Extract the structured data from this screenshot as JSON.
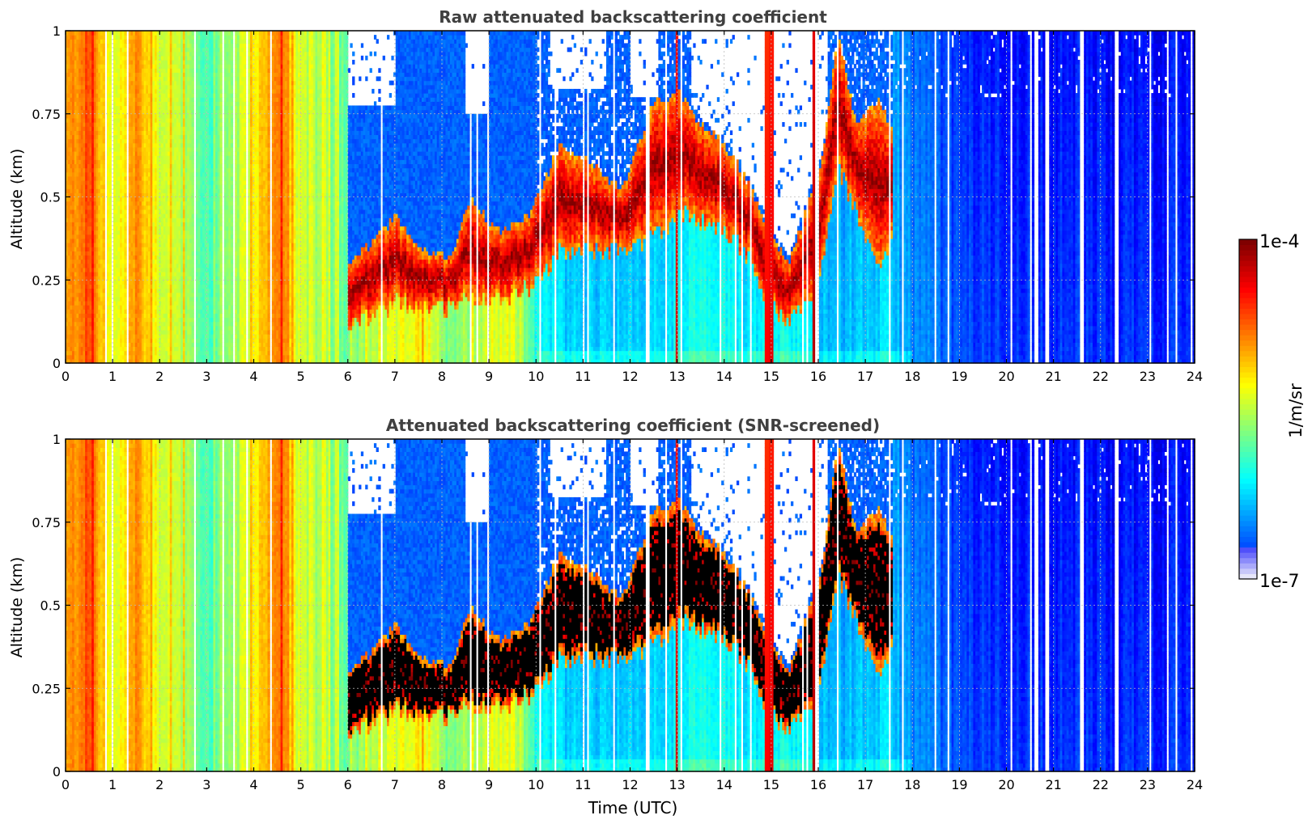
{
  "chart_data": [
    {
      "type": "heatmap",
      "title": "Raw attenuated backscattering coefficient",
      "xlabel": "",
      "ylabel": "Altitude (km)",
      "xlim": [
        0,
        24
      ],
      "ylim": [
        0,
        1
      ],
      "xticks": [
        "0",
        "1",
        "2",
        "3",
        "4",
        "5",
        "6",
        "7",
        "8",
        "9",
        "10",
        "11",
        "12",
        "13",
        "14",
        "15",
        "16",
        "17",
        "18",
        "19",
        "20",
        "21",
        "22",
        "23",
        "24"
      ],
      "yticks": [
        "0",
        "0.25",
        "0.5",
        "0.75",
        "1"
      ],
      "grid": true,
      "masking": "none"
    },
    {
      "type": "heatmap",
      "title": "Attenuated backscattering coefficient (SNR-screened)",
      "xlabel": "Time (UTC)",
      "ylabel": "Altitude (km)",
      "xlim": [
        0,
        24
      ],
      "ylim": [
        0,
        1
      ],
      "xticks": [
        "0",
        "1",
        "2",
        "3",
        "4",
        "5",
        "6",
        "7",
        "8",
        "9",
        "10",
        "11",
        "12",
        "13",
        "14",
        "15",
        "16",
        "17",
        "18",
        "19",
        "20",
        "21",
        "22",
        "23",
        "24"
      ],
      "yticks": [
        "0",
        "0.25",
        "0.5",
        "0.75",
        "1"
      ],
      "grid": true,
      "masking": "low-SNR cloud cores shown in black"
    }
  ],
  "colorbar": {
    "label": "1/m/sr",
    "min_label": "1e-7",
    "max_label": "1e-4",
    "scale": "log",
    "colormap": "jet",
    "low_color": "#e6e6fa",
    "high_color": "#800000"
  },
  "background_profile": [
    {
      "t": 0.0,
      "v": 0.7
    },
    {
      "t": 0.5,
      "v": 0.8
    },
    {
      "t": 1.0,
      "v": 0.58
    },
    {
      "t": 1.5,
      "v": 0.74
    },
    {
      "t": 2.0,
      "v": 0.6
    },
    {
      "t": 2.5,
      "v": 0.56
    },
    {
      "t": 3.0,
      "v": 0.44
    },
    {
      "t": 3.5,
      "v": 0.5
    },
    {
      "t": 4.0,
      "v": 0.63
    },
    {
      "t": 4.5,
      "v": 0.78
    },
    {
      "t": 5.0,
      "v": 0.56
    },
    {
      "t": 5.5,
      "v": 0.52
    },
    {
      "t": 6.0,
      "v": 0.48
    },
    {
      "t": 6.5,
      "v": 0.55
    },
    {
      "t": 7.0,
      "v": 0.58
    },
    {
      "t": 7.5,
      "v": 0.64
    },
    {
      "t": 8.0,
      "v": 0.5
    },
    {
      "t": 8.5,
      "v": 0.53
    },
    {
      "t": 9.0,
      "v": 0.58
    },
    {
      "t": 9.5,
      "v": 0.6
    },
    {
      "t": 10.0,
      "v": 0.4
    },
    {
      "t": 10.5,
      "v": 0.34
    },
    {
      "t": 11.0,
      "v": 0.33
    },
    {
      "t": 11.5,
      "v": 0.34
    },
    {
      "t": 12.0,
      "v": 0.32
    },
    {
      "t": 12.5,
      "v": 0.34
    },
    {
      "t": 13.0,
      "v": 0.37
    },
    {
      "t": 13.5,
      "v": 0.4
    },
    {
      "t": 14.0,
      "v": 0.38
    },
    {
      "t": 14.5,
      "v": 0.36
    },
    {
      "t": 15.0,
      "v": 0.4
    },
    {
      "t": 15.5,
      "v": 0.38
    },
    {
      "t": 16.0,
      "v": 0.34
    },
    {
      "t": 16.5,
      "v": 0.31
    },
    {
      "t": 17.0,
      "v": 0.33
    },
    {
      "t": 17.5,
      "v": 0.34
    },
    {
      "t": 18.0,
      "v": 0.27
    },
    {
      "t": 18.5,
      "v": 0.24
    },
    {
      "t": 19.0,
      "v": 0.2
    },
    {
      "t": 20.0,
      "v": 0.18
    },
    {
      "t": 21.0,
      "v": 0.18
    },
    {
      "t": 22.0,
      "v": 0.17
    },
    {
      "t": 23.0,
      "v": 0.17
    },
    {
      "t": 24.0,
      "v": 0.17
    }
  ],
  "cloud_layer": [
    {
      "t": 6.0,
      "base": 0.1,
      "top": 0.3
    },
    {
      "t": 6.5,
      "base": 0.14,
      "top": 0.36
    },
    {
      "t": 7.0,
      "base": 0.18,
      "top": 0.44
    },
    {
      "t": 7.6,
      "base": 0.17,
      "top": 0.34
    },
    {
      "t": 8.2,
      "base": 0.17,
      "top": 0.32
    },
    {
      "t": 8.6,
      "base": 0.2,
      "top": 0.5
    },
    {
      "t": 9.2,
      "base": 0.2,
      "top": 0.4
    },
    {
      "t": 9.8,
      "base": 0.22,
      "top": 0.44
    },
    {
      "t": 10.5,
      "base": 0.33,
      "top": 0.65
    },
    {
      "t": 11.2,
      "base": 0.34,
      "top": 0.6
    },
    {
      "t": 11.8,
      "base": 0.34,
      "top": 0.52
    },
    {
      "t": 12.5,
      "base": 0.38,
      "top": 0.78
    },
    {
      "t": 13.0,
      "base": 0.45,
      "top": 0.82
    },
    {
      "t": 13.5,
      "base": 0.43,
      "top": 0.72
    },
    {
      "t": 14.0,
      "base": 0.4,
      "top": 0.66
    },
    {
      "t": 14.5,
      "base": 0.32,
      "top": 0.55
    },
    {
      "t": 15.0,
      "base": 0.16,
      "top": 0.38
    },
    {
      "t": 15.4,
      "base": 0.12,
      "top": 0.3
    },
    {
      "t": 15.8,
      "base": 0.2,
      "top": 0.5
    },
    {
      "t": 16.1,
      "base": 0.3,
      "top": 0.62
    },
    {
      "t": 16.4,
      "base": 0.6,
      "top": 1.0
    },
    {
      "t": 16.8,
      "base": 0.45,
      "top": 0.72
    },
    {
      "t": 17.3,
      "base": 0.3,
      "top": 0.8
    },
    {
      "t": 17.6,
      "base": 0.4,
      "top": 0.7
    }
  ],
  "clear_gaps": [
    {
      "t0": 6.0,
      "t1": 7.0,
      "from": 0.78
    },
    {
      "t0": 8.5,
      "t1": 9.0,
      "from": 0.75
    },
    {
      "t0": 10.3,
      "t1": 11.5,
      "from": 0.82
    },
    {
      "t0": 12.0,
      "t1": 12.6,
      "from": 0.8
    },
    {
      "t0": 13.3,
      "t1": 16.2,
      "from": "above_cloud"
    }
  ],
  "rain_columns": [
    {
      "t": 13.0,
      "v": 0.92
    },
    {
      "t": 14.9,
      "v": 0.88
    },
    {
      "t": 15.0,
      "v": 0.9
    },
    {
      "t": 15.9,
      "v": 0.95
    },
    {
      "t": 16.0,
      "v": 0.92
    }
  ]
}
